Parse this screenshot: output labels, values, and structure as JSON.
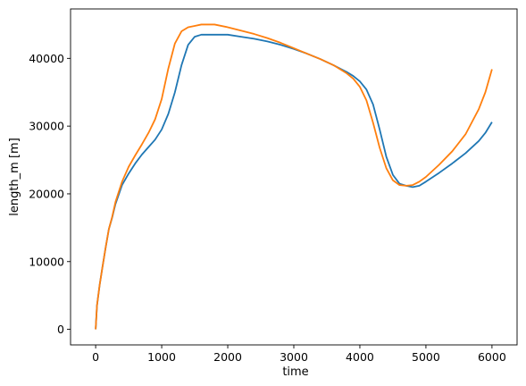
{
  "chart_data": {
    "type": "line",
    "xlabel": "time",
    "ylabel": "length_m [m]",
    "xlim": [
      -380,
      6380
    ],
    "ylim": [
      -2300,
      47300
    ],
    "xticks": [
      0,
      1000,
      2000,
      3000,
      4000,
      5000,
      6000
    ],
    "yticks": [
      0,
      10000,
      20000,
      30000,
      40000
    ],
    "grid": false,
    "series": [
      {
        "color": "#1f77b4",
        "points": [
          [
            0,
            0
          ],
          [
            20,
            3500
          ],
          [
            60,
            6500
          ],
          [
            100,
            9000
          ],
          [
            150,
            12000
          ],
          [
            200,
            14800
          ],
          [
            250,
            16500
          ],
          [
            300,
            18500
          ],
          [
            400,
            21300
          ],
          [
            500,
            23000
          ],
          [
            600,
            24500
          ],
          [
            700,
            25800
          ],
          [
            800,
            26900
          ],
          [
            900,
            28000
          ],
          [
            1000,
            29500
          ],
          [
            1100,
            31800
          ],
          [
            1200,
            35000
          ],
          [
            1300,
            39000
          ],
          [
            1400,
            42000
          ],
          [
            1500,
            43200
          ],
          [
            1600,
            43500
          ],
          [
            1800,
            43500
          ],
          [
            2000,
            43500
          ],
          [
            2200,
            43200
          ],
          [
            2400,
            42900
          ],
          [
            2600,
            42500
          ],
          [
            2800,
            42000
          ],
          [
            3000,
            41400
          ],
          [
            3200,
            40700
          ],
          [
            3400,
            39900
          ],
          [
            3600,
            39000
          ],
          [
            3800,
            38000
          ],
          [
            3900,
            37400
          ],
          [
            4000,
            36600
          ],
          [
            4100,
            35400
          ],
          [
            4200,
            33200
          ],
          [
            4300,
            29500
          ],
          [
            4400,
            25500
          ],
          [
            4500,
            22800
          ],
          [
            4600,
            21500
          ],
          [
            4700,
            21200
          ],
          [
            4800,
            21000
          ],
          [
            4900,
            21200
          ],
          [
            5000,
            21800
          ],
          [
            5200,
            23100
          ],
          [
            5400,
            24500
          ],
          [
            5600,
            26000
          ],
          [
            5800,
            27800
          ],
          [
            5900,
            29000
          ],
          [
            6000,
            30600
          ]
        ]
      },
      {
        "color": "#ff7f0e",
        "points": [
          [
            0,
            0
          ],
          [
            20,
            3500
          ],
          [
            60,
            6500
          ],
          [
            100,
            9000
          ],
          [
            150,
            12000
          ],
          [
            200,
            14800
          ],
          [
            250,
            16600
          ],
          [
            300,
            18800
          ],
          [
            400,
            21800
          ],
          [
            500,
            24000
          ],
          [
            600,
            25700
          ],
          [
            700,
            27300
          ],
          [
            800,
            29000
          ],
          [
            900,
            31000
          ],
          [
            1000,
            34000
          ],
          [
            1100,
            38500
          ],
          [
            1200,
            42200
          ],
          [
            1300,
            44000
          ],
          [
            1400,
            44600
          ],
          [
            1500,
            44800
          ],
          [
            1600,
            45000
          ],
          [
            1800,
            45000
          ],
          [
            2000,
            44600
          ],
          [
            2200,
            44100
          ],
          [
            2400,
            43600
          ],
          [
            2600,
            43000
          ],
          [
            2800,
            42300
          ],
          [
            3000,
            41500
          ],
          [
            3200,
            40700
          ],
          [
            3400,
            39900
          ],
          [
            3600,
            39000
          ],
          [
            3800,
            37800
          ],
          [
            3900,
            37000
          ],
          [
            4000,
            35800
          ],
          [
            4100,
            33800
          ],
          [
            4200,
            30500
          ],
          [
            4300,
            26800
          ],
          [
            4400,
            23800
          ],
          [
            4500,
            22000
          ],
          [
            4600,
            21300
          ],
          [
            4700,
            21200
          ],
          [
            4800,
            21300
          ],
          [
            4900,
            21800
          ],
          [
            5000,
            22500
          ],
          [
            5200,
            24300
          ],
          [
            5400,
            26300
          ],
          [
            5600,
            28800
          ],
          [
            5800,
            32500
          ],
          [
            5900,
            35000
          ],
          [
            6000,
            38400
          ]
        ]
      }
    ]
  }
}
